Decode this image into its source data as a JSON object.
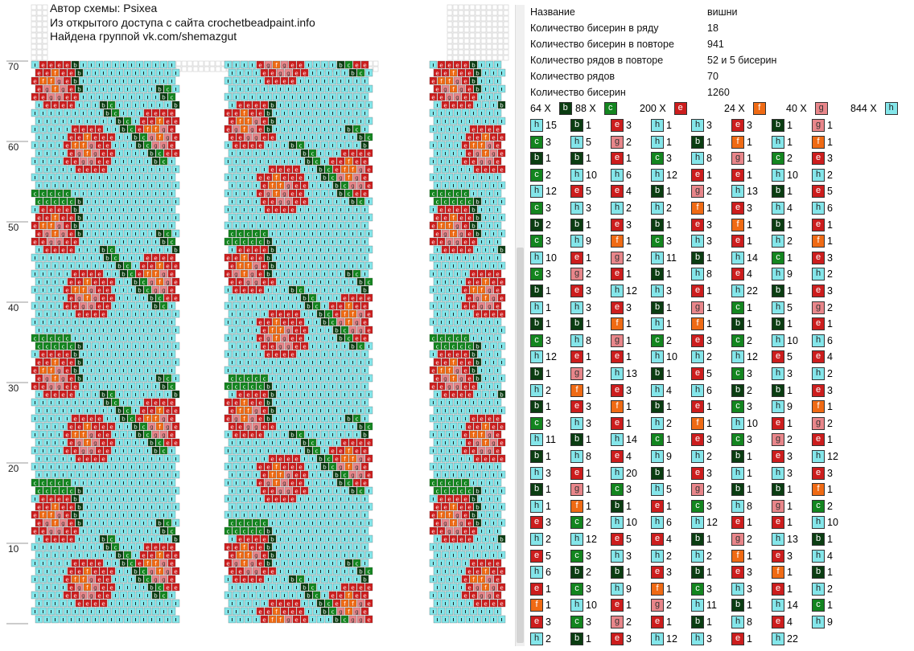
{
  "credits": {
    "author": "Автор схемы: Psixea",
    "source": "Из открытого доступа с сайта crochetbeadpaint.info",
    "group": "Найдена группой vk.com/shemazgut"
  },
  "axis_labels": [
    "70",
    "60",
    "50",
    "40",
    "30",
    "20",
    "10"
  ],
  "info": [
    {
      "key": "Название",
      "value": "вишни"
    },
    {
      "key": "Количество бисерин в ряду",
      "value": "18"
    },
    {
      "key": "Количество бисерин в повторе",
      "value": "941"
    },
    {
      "key": "Количество рядов в повторе",
      "value": "52 и 5 бисерин"
    },
    {
      "key": "Количество рядов",
      "value": "70"
    },
    {
      "key": "Количество бисерин",
      "value": "1260"
    }
  ],
  "colors": {
    "b": {
      "bg": "#0b3d12",
      "fg": "#ffffff"
    },
    "c": {
      "bg": "#13851f",
      "fg": "#ffffff"
    },
    "e": {
      "bg": "#cc1d1d",
      "fg": "#ffffff"
    },
    "f": {
      "bg": "#ef6a14",
      "fg": "#ffffff"
    },
    "g": {
      "bg": "#e8868a",
      "fg": "#333333"
    },
    "h": {
      "bg": "#84e6ea",
      "fg": "#222222"
    }
  },
  "totals": [
    {
      "count": "64 X",
      "code": "b"
    },
    {
      "count": "88 X",
      "code": "c"
    },
    {
      "count": "200 X",
      "code": "e"
    },
    {
      "count": "24 X",
      "code": "f"
    },
    {
      "count": "40 X",
      "code": "g"
    },
    {
      "count": "844 X",
      "code": "h"
    }
  ],
  "sequence": [
    [
      "h",
      "15"
    ],
    [
      "b",
      "1"
    ],
    [
      "e",
      "3"
    ],
    [
      "h",
      "1"
    ],
    [
      "h",
      "3"
    ],
    [
      "e",
      "3"
    ],
    [
      "b",
      "1"
    ],
    [
      "g",
      "1"
    ],
    [
      "c",
      "3"
    ],
    [
      "h",
      "5"
    ],
    [
      "g",
      "2"
    ],
    [
      "h",
      "1"
    ],
    [
      "b",
      "1"
    ],
    [
      "f",
      "1"
    ],
    [
      "h",
      "1"
    ],
    [
      "f",
      "1"
    ],
    [
      "b",
      "1"
    ],
    [
      "b",
      "1"
    ],
    [
      "e",
      "1"
    ],
    [
      "c",
      "3"
    ],
    [
      "h",
      "8"
    ],
    [
      "g",
      "1"
    ],
    [
      "c",
      "2"
    ],
    [
      "e",
      "3"
    ],
    [
      "c",
      "2"
    ],
    [
      "h",
      "10"
    ],
    [
      "h",
      "6"
    ],
    [
      "h",
      "12"
    ],
    [
      "e",
      "1"
    ],
    [
      "e",
      "1"
    ],
    [
      "h",
      "10"
    ],
    [
      "h",
      "2"
    ],
    [
      "h",
      "12"
    ],
    [
      "e",
      "5"
    ],
    [
      "e",
      "4"
    ],
    [
      "b",
      "1"
    ],
    [
      "g",
      "2"
    ],
    [
      "h",
      "13"
    ],
    [
      "b",
      "1"
    ],
    [
      "e",
      "5"
    ],
    [
      "c",
      "3"
    ],
    [
      "h",
      "3"
    ],
    [
      "h",
      "2"
    ],
    [
      "h",
      "2"
    ],
    [
      "f",
      "1"
    ],
    [
      "e",
      "3"
    ],
    [
      "h",
      "4"
    ],
    [
      "h",
      "6"
    ],
    [
      "b",
      "2"
    ],
    [
      "b",
      "1"
    ],
    [
      "e",
      "3"
    ],
    [
      "b",
      "1"
    ],
    [
      "e",
      "3"
    ],
    [
      "f",
      "1"
    ],
    [
      "b",
      "1"
    ],
    [
      "e",
      "1"
    ],
    [
      "c",
      "3"
    ],
    [
      "h",
      "9"
    ],
    [
      "f",
      "1"
    ],
    [
      "c",
      "3"
    ],
    [
      "h",
      "3"
    ],
    [
      "e",
      "1"
    ],
    [
      "h",
      "2"
    ],
    [
      "f",
      "1"
    ],
    [
      "h",
      "10"
    ],
    [
      "e",
      "1"
    ],
    [
      "g",
      "2"
    ],
    [
      "h",
      "11"
    ],
    [
      "b",
      "1"
    ],
    [
      "h",
      "14"
    ],
    [
      "c",
      "1"
    ],
    [
      "e",
      "3"
    ],
    [
      "c",
      "3"
    ],
    [
      "g",
      "2"
    ],
    [
      "e",
      "1"
    ],
    [
      "b",
      "1"
    ],
    [
      "h",
      "8"
    ],
    [
      "e",
      "4"
    ],
    [
      "h",
      "9"
    ],
    [
      "h",
      "2"
    ],
    [
      "b",
      "1"
    ],
    [
      "e",
      "3"
    ],
    [
      "h",
      "12"
    ],
    [
      "h",
      "3"
    ],
    [
      "e",
      "1"
    ],
    [
      "h",
      "22"
    ],
    [
      "b",
      "1"
    ],
    [
      "e",
      "3"
    ],
    [
      "h",
      "1"
    ],
    [
      "h",
      "3"
    ],
    [
      "e",
      "3"
    ],
    [
      "b",
      "1"
    ],
    [
      "g",
      "1"
    ],
    [
      "c",
      "1"
    ],
    [
      "h",
      "5"
    ],
    [
      "g",
      "2"
    ],
    [
      "b",
      "1"
    ],
    [
      "b",
      "1"
    ],
    [
      "f",
      "1"
    ],
    [
      "h",
      "1"
    ],
    [
      "f",
      "1"
    ],
    [
      "b",
      "1"
    ],
    [
      "b",
      "1"
    ],
    [
      "e",
      "1"
    ],
    [
      "c",
      "3"
    ],
    [
      "h",
      "8"
    ],
    [
      "g",
      "1"
    ],
    [
      "c",
      "2"
    ],
    [
      "e",
      "3"
    ],
    [
      "c",
      "2"
    ],
    [
      "h",
      "10"
    ],
    [
      "h",
      "6"
    ],
    [
      "h",
      "12"
    ],
    [
      "e",
      "1"
    ],
    [
      "e",
      "1"
    ],
    [
      "h",
      "10"
    ],
    [
      "h",
      "2"
    ],
    [
      "h",
      "12"
    ],
    [
      "e",
      "5"
    ],
    [
      "e",
      "4"
    ],
    [
      "b",
      "1"
    ],
    [
      "g",
      "2"
    ],
    [
      "h",
      "13"
    ],
    [
      "b",
      "1"
    ],
    [
      "e",
      "5"
    ],
    [
      "c",
      "3"
    ],
    [
      "h",
      "3"
    ],
    [
      "h",
      "2"
    ],
    [
      "h",
      "2"
    ],
    [
      "f",
      "1"
    ],
    [
      "e",
      "3"
    ],
    [
      "h",
      "4"
    ],
    [
      "h",
      "6"
    ],
    [
      "b",
      "2"
    ],
    [
      "b",
      "1"
    ],
    [
      "e",
      "3"
    ],
    [
      "b",
      "1"
    ],
    [
      "e",
      "3"
    ],
    [
      "f",
      "1"
    ],
    [
      "b",
      "1"
    ],
    [
      "e",
      "1"
    ],
    [
      "c",
      "3"
    ],
    [
      "h",
      "9"
    ],
    [
      "f",
      "1"
    ],
    [
      "c",
      "3"
    ],
    [
      "h",
      "3"
    ],
    [
      "e",
      "1"
    ],
    [
      "h",
      "2"
    ],
    [
      "f",
      "1"
    ],
    [
      "h",
      "10"
    ],
    [
      "e",
      "1"
    ],
    [
      "g",
      "2"
    ],
    [
      "h",
      "11"
    ],
    [
      "b",
      "1"
    ],
    [
      "h",
      "14"
    ],
    [
      "c",
      "1"
    ],
    [
      "e",
      "3"
    ],
    [
      "c",
      "3"
    ],
    [
      "g",
      "2"
    ],
    [
      "e",
      "1"
    ],
    [
      "b",
      "1"
    ],
    [
      "h",
      "8"
    ],
    [
      "e",
      "4"
    ],
    [
      "h",
      "9"
    ],
    [
      "h",
      "2"
    ],
    [
      "b",
      "1"
    ],
    [
      "e",
      "3"
    ],
    [
      "h",
      "12"
    ],
    [
      "h",
      "3"
    ],
    [
      "e",
      "1"
    ],
    [
      "h",
      "20"
    ],
    [
      "b",
      "1"
    ],
    [
      "e",
      "3"
    ],
    [
      "h",
      "1"
    ],
    [
      "h",
      "3"
    ],
    [
      "e",
      "3"
    ],
    [
      "b",
      "1"
    ],
    [
      "g",
      "1"
    ],
    [
      "c",
      "3"
    ],
    [
      "h",
      "5"
    ],
    [
      "g",
      "2"
    ],
    [
      "b",
      "1"
    ],
    [
      "b",
      "1"
    ],
    [
      "f",
      "1"
    ],
    [
      "h",
      "1"
    ],
    [
      "f",
      "1"
    ],
    [
      "b",
      "1"
    ],
    [
      "e",
      "1"
    ],
    [
      "c",
      "3"
    ],
    [
      "h",
      "8"
    ],
    [
      "g",
      "1"
    ],
    [
      "c",
      "2"
    ],
    [
      "e",
      "3"
    ],
    [
      "c",
      "2"
    ],
    [
      "h",
      "10"
    ],
    [
      "h",
      "6"
    ],
    [
      "h",
      "12"
    ],
    [
      "e",
      "1"
    ],
    [
      "e",
      "1"
    ],
    [
      "h",
      "10"
    ],
    [
      "h",
      "2"
    ],
    [
      "h",
      "12"
    ],
    [
      "e",
      "5"
    ],
    [
      "e",
      "4"
    ],
    [
      "b",
      "1"
    ],
    [
      "g",
      "2"
    ],
    [
      "h",
      "13"
    ],
    [
      "b",
      "1"
    ],
    [
      "e",
      "5"
    ],
    [
      "c",
      "3"
    ],
    [
      "h",
      "3"
    ],
    [
      "h",
      "2"
    ],
    [
      "h",
      "2"
    ],
    [
      "f",
      "1"
    ],
    [
      "e",
      "3"
    ],
    [
      "h",
      "4"
    ],
    [
      "h",
      "6"
    ],
    [
      "b",
      "2"
    ],
    [
      "b",
      "1"
    ],
    [
      "e",
      "3"
    ],
    [
      "b",
      "1"
    ],
    [
      "e",
      "3"
    ],
    [
      "f",
      "1"
    ],
    [
      "b",
      "1"
    ],
    [
      "e",
      "1"
    ],
    [
      "c",
      "3"
    ],
    [
      "h",
      "9"
    ],
    [
      "f",
      "1"
    ],
    [
      "c",
      "3"
    ],
    [
      "h",
      "3"
    ],
    [
      "e",
      "1"
    ],
    [
      "h",
      "2"
    ],
    [
      "f",
      "1"
    ],
    [
      "h",
      "10"
    ],
    [
      "e",
      "1"
    ],
    [
      "g",
      "2"
    ],
    [
      "h",
      "11"
    ],
    [
      "b",
      "1"
    ],
    [
      "h",
      "14"
    ],
    [
      "c",
      "1"
    ],
    [
      "e",
      "3"
    ],
    [
      "c",
      "3"
    ],
    [
      "g",
      "2"
    ],
    [
      "e",
      "1"
    ],
    [
      "b",
      "1"
    ],
    [
      "h",
      "8"
    ],
    [
      "e",
      "4"
    ],
    [
      "h",
      "9"
    ],
    [
      "h",
      "2"
    ],
    [
      "b",
      "1"
    ],
    [
      "e",
      "3"
    ],
    [
      "h",
      "12"
    ],
    [
      "h",
      "3"
    ],
    [
      "e",
      "1"
    ],
    [
      "h",
      "22"
    ]
  ]
}
